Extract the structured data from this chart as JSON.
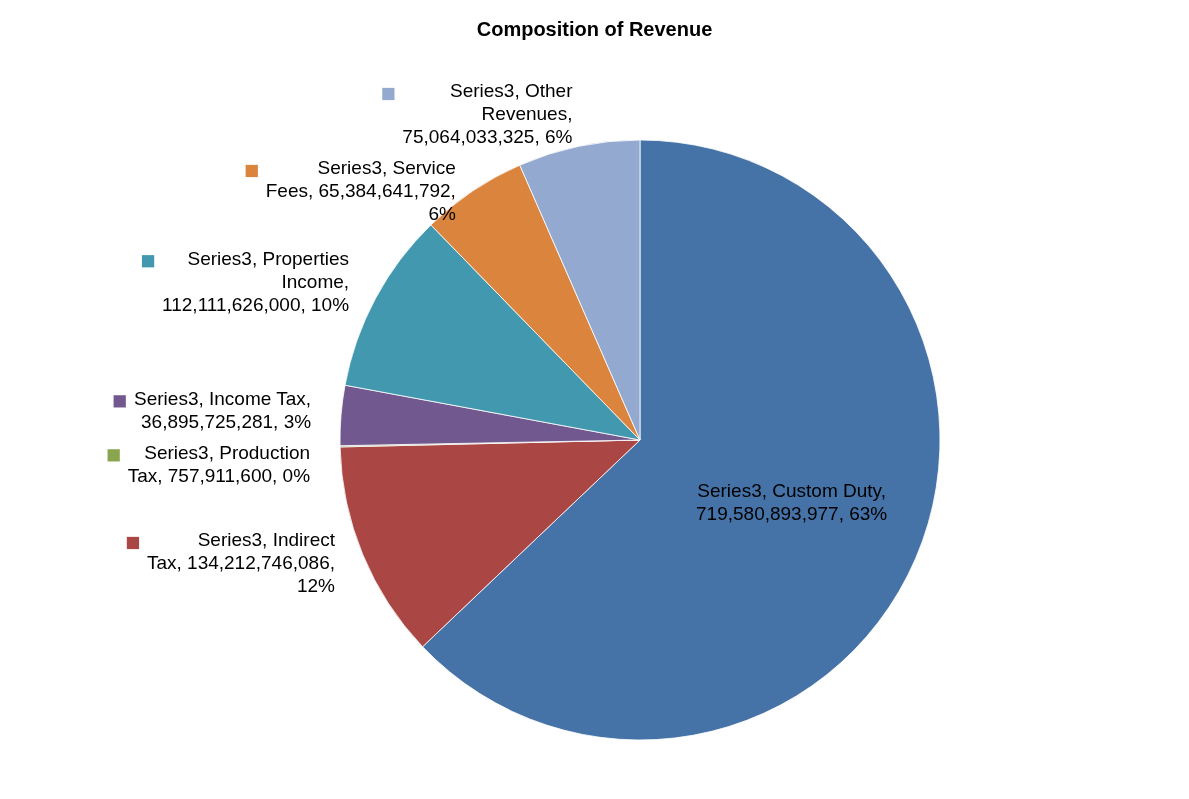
{
  "chart_data": {
    "type": "pie",
    "title": "Composition of Revenue",
    "categories": [
      null,
      null,
      null,
      null,
      null,
      null,
      null
    ],
    "values": [
      719580893977,
      134212746086,
      757911600,
      36895725281,
      112111626000,
      65384641792,
      75064033325
    ],
    "colors": [
      "#4572a7",
      "#aa4643",
      "#89a54e",
      "#71588f",
      "#4198af",
      "#db843d",
      "#93a9cf"
    ],
    "value_labels": [
      "Series3, Custom Duty, 719,580,893,977, 63%",
      "Series3, Indirect Tax, 134,212,746,086, 12%",
      "Series3, Production Tax, 757,911,600, 0%",
      "Series3, Income Tax, 36,895,725,281, 3%",
      "Series3, Properties Income, 112,111,626,000, 10%",
      "Series3, Service Fees, 65,384,641,792, 6%",
      "Series3, Other Revenues, 75,064,033,325, 6%"
    ]
  }
}
